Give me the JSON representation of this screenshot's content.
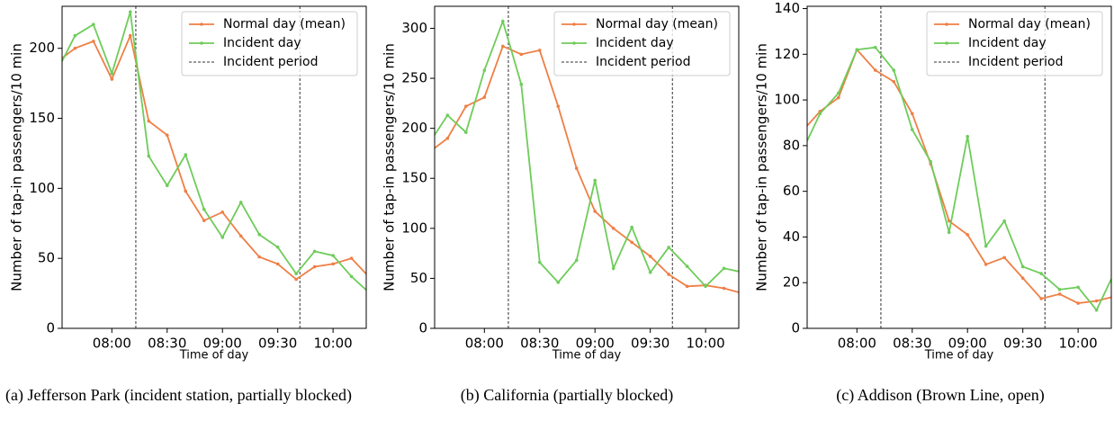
{
  "chart_data": [
    {
      "type": "line",
      "title": "(a) Jefferson Park (incident station, partially blocked)",
      "xlabel": "Time of day",
      "ylabel": "Number of tap-in passengers/10 min",
      "x": [
        450,
        460,
        470,
        480,
        490,
        500,
        510,
        520,
        530,
        540,
        550,
        560,
        570,
        580,
        590,
        600,
        610,
        620
      ],
      "xlim": [
        453,
        618
      ],
      "xticks": [
        {
          "value": 480,
          "label": "08:00"
        },
        {
          "value": 510,
          "label": "08:30"
        },
        {
          "value": 540,
          "label": "09:00"
        },
        {
          "value": 570,
          "label": "09:30"
        },
        {
          "value": 600,
          "label": "10:00"
        }
      ],
      "ylim": [
        0,
        230
      ],
      "yticks": [
        0,
        50,
        100,
        150,
        200
      ],
      "series": [
        {
          "name": "Normal day (mean)",
          "color": "#ef7f45",
          "values": [
            190,
            200,
            205,
            178,
            209,
            148,
            138,
            98,
            77,
            83,
            66,
            51,
            46,
            35,
            44,
            46,
            50,
            36
          ]
        },
        {
          "name": "Incident day",
          "color": "#6ecc5a",
          "values": [
            183,
            209,
            217,
            182,
            226,
            123,
            102,
            124,
            85,
            65,
            90,
            67,
            58,
            39,
            55,
            52,
            37,
            25
          ]
        }
      ],
      "vlines": {
        "name": "Incident period",
        "color": "#333333",
        "x": [
          493,
          582
        ]
      }
    },
    {
      "type": "line",
      "title": "(b) California (partially blocked)",
      "xlabel": "Time of day",
      "ylabel": "Number of tap-in passengers/10 min",
      "x": [
        450,
        460,
        470,
        480,
        490,
        500,
        510,
        520,
        530,
        540,
        550,
        560,
        570,
        580,
        590,
        600,
        610,
        620
      ],
      "xlim": [
        453,
        618
      ],
      "xticks": [
        {
          "value": 480,
          "label": "08:00"
        },
        {
          "value": 510,
          "label": "08:30"
        },
        {
          "value": 540,
          "label": "09:00"
        },
        {
          "value": 570,
          "label": "09:30"
        },
        {
          "value": 600,
          "label": "10:00"
        }
      ],
      "ylim": [
        0,
        322
      ],
      "yticks": [
        0,
        50,
        100,
        150,
        200,
        250,
        300
      ],
      "series": [
        {
          "name": "Normal day (mean)",
          "color": "#ef7f45",
          "values": [
            176,
            190,
            222,
            231,
            282,
            274,
            278,
            222,
            160,
            117,
            100,
            86,
            72,
            54,
            42,
            43,
            40,
            35
          ]
        },
        {
          "name": "Incident day",
          "color": "#6ecc5a",
          "values": [
            185,
            213,
            196,
            258,
            307,
            244,
            66,
            46,
            68,
            148,
            60,
            101,
            56,
            81,
            62,
            42,
            60,
            56
          ]
        }
      ],
      "vlines": {
        "name": "Incident period",
        "color": "#333333",
        "x": [
          493,
          582
        ]
      }
    },
    {
      "type": "line",
      "title": "(c) Addison (Brown Line, open)",
      "xlabel": "Time of day",
      "ylabel": "Number of tap-in passengers/10 min",
      "x": [
        450,
        460,
        470,
        480,
        490,
        500,
        510,
        520,
        530,
        540,
        550,
        560,
        570,
        580,
        590,
        600,
        610,
        620
      ],
      "xlim": [
        453,
        618
      ],
      "xticks": [
        {
          "value": 480,
          "label": "08:00"
        },
        {
          "value": 510,
          "label": "08:30"
        },
        {
          "value": 540,
          "label": "09:00"
        },
        {
          "value": 570,
          "label": "09:30"
        },
        {
          "value": 600,
          "label": "10:00"
        }
      ],
      "ylim": [
        0,
        141
      ],
      "yticks": [
        0,
        20,
        40,
        60,
        80,
        100,
        120,
        140
      ],
      "series": [
        {
          "name": "Normal day (mean)",
          "color": "#ef7f45",
          "values": [
            86,
            95,
            101,
            122,
            113,
            108,
            94,
            72,
            47,
            41,
            28,
            31,
            22,
            13,
            15,
            11,
            12,
            14
          ]
        },
        {
          "name": "Incident day",
          "color": "#6ecc5a",
          "values": [
            77,
            94,
            103,
            122,
            123,
            113,
            87,
            73,
            42,
            84,
            36,
            47,
            27,
            24,
            17,
            18,
            8,
            25
          ]
        }
      ],
      "vlines": {
        "name": "Incident period",
        "color": "#333333",
        "x": [
          493,
          582
        ]
      }
    }
  ]
}
